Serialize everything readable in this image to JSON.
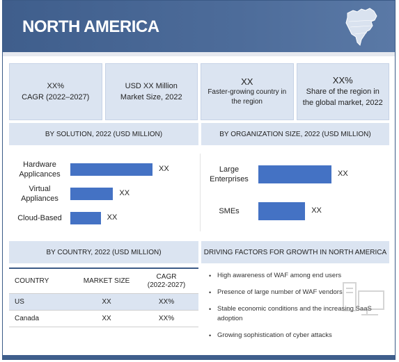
{
  "header": {
    "title": "NORTH AMERICA",
    "map_icon": "north-america-map-icon"
  },
  "kpis": [
    {
      "line1": "XX%",
      "line2": "CAGR (2022–2027)"
    },
    {
      "line1": "USD XX Million",
      "line2": "Market Size, 2022"
    },
    {
      "line1": "XX",
      "line2": "Faster-growing country in the region"
    },
    {
      "line1": "XX%",
      "line2": "Share of the region in the global market, 2022"
    }
  ],
  "sections": {
    "by_solution": "BY SOLUTION, 2022 (USD MILLION)",
    "by_org_size": "BY ORGANIZATION SIZE, 2022 (USD MILLION)",
    "by_country": "BY COUNTRY, 2022 (USD MILLION)",
    "driving_factors": "DRIVING FACTORS FOR GROWTH IN NORTH AMERICA"
  },
  "chart_data": [
    {
      "type": "bar",
      "orientation": "horizontal",
      "title": "BY SOLUTION, 2022 (USD MILLION)",
      "categories": [
        "Hardware Applicances",
        "Virtual Appliances",
        "Cloud-Based"
      ],
      "values": [
        100,
        52,
        37
      ],
      "labels": [
        "XX",
        "XX",
        "XX"
      ]
    },
    {
      "type": "bar",
      "orientation": "horizontal",
      "title": "BY ORGANIZATION SIZE, 2022 (USD MILLION)",
      "categories": [
        "Large Enterprises",
        "SMEs"
      ],
      "values": [
        100,
        64
      ],
      "labels": [
        "XX",
        "XX"
      ]
    },
    {
      "type": "table",
      "title": "BY COUNTRY, 2022 (USD MILLION)",
      "columns": [
        "COUNTRY",
        "MARKET SIZE",
        "CAGR (2022-2027)"
      ],
      "rows": [
        [
          "US",
          "XX",
          "XX%"
        ],
        [
          "Canada",
          "XX",
          "XX%"
        ]
      ]
    }
  ],
  "solution_labels": [
    "Hardware\nApplicances",
    "Virtual\nAppliances",
    "Cloud-Based"
  ],
  "org_labels": [
    "Large\nEnterprises",
    "SMEs"
  ],
  "country_table": {
    "headers": {
      "country": "COUNTRY",
      "market_size": "MARKET SIZE",
      "cagr": "CAGR\n(2022-2027)"
    },
    "rows": [
      {
        "country": "US",
        "market_size": "XX",
        "cagr": "XX%"
      },
      {
        "country": "Canada",
        "market_size": "XX",
        "cagr": "XX%"
      }
    ]
  },
  "factors": [
    "High awareness of WAF among end users",
    "Presence of large number of WAF vendors",
    "Stable economic conditions and the increasing SaaS adoption",
    "Growing sophistication of cyber attacks"
  ],
  "colors": {
    "header": "#3f5e8c",
    "panel": "#dbe4f1",
    "bar": "#4472c4"
  },
  "icons": {
    "bullet": "•",
    "computer": "computer-icon"
  }
}
